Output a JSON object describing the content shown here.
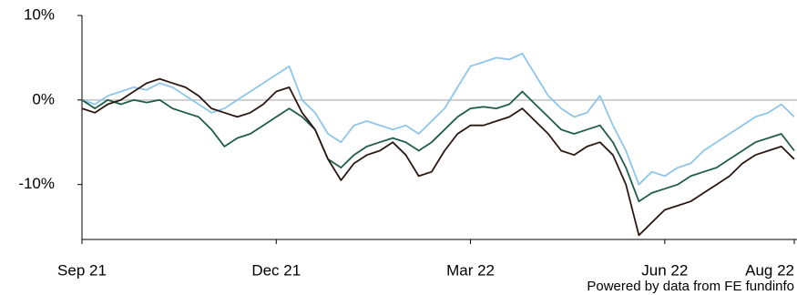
{
  "chart_data": {
    "type": "line",
    "categories": [
      "Sep 21",
      null,
      null,
      null,
      null,
      null,
      null,
      null,
      null,
      null,
      null,
      null,
      null,
      null,
      null,
      "Dec 21",
      null,
      null,
      null,
      null,
      null,
      null,
      null,
      null,
      null,
      null,
      null,
      null,
      null,
      null,
      "Mar 22",
      null,
      null,
      null,
      null,
      null,
      null,
      null,
      null,
      null,
      null,
      null,
      null,
      null,
      null,
      "Jun 22",
      null,
      null,
      null,
      null,
      null,
      null,
      null,
      null,
      null,
      "Aug 22"
    ],
    "series": [
      {
        "color": "#8ec5ea",
        "values": [
          0,
          -0.5,
          0.5,
          1,
          1.5,
          1.2,
          2,
          1.5,
          0.5,
          -0.5,
          -1.5,
          -1,
          0,
          1,
          2,
          3,
          4,
          0,
          -1.5,
          -4,
          -5,
          -3,
          -2.5,
          -3,
          -3.5,
          -3,
          -4,
          -2.5,
          -1,
          1.5,
          4,
          4.5,
          5,
          4.8,
          5.5,
          3,
          0.5,
          -1,
          -2,
          -1.5,
          0.5,
          -3,
          -6,
          -10,
          -8.5,
          -9,
          -8,
          -7.5,
          -6,
          -5,
          -4,
          -3,
          -2,
          -1.5,
          -0.5,
          -2
        ]
      },
      {
        "color": "#1f5c4a",
        "values": [
          0,
          -1,
          0,
          -0.5,
          0,
          -0.3,
          0,
          -1,
          -1.5,
          -2,
          -3.5,
          -5.5,
          -4.5,
          -4,
          -3,
          -2,
          -1,
          -2,
          -3.5,
          -7,
          -8,
          -6.5,
          -5.5,
          -5,
          -4.5,
          -5,
          -6,
          -5,
          -3.5,
          -2,
          -1,
          -0.8,
          -1,
          -0.5,
          1,
          -0.5,
          -2,
          -3.5,
          -4,
          -3.5,
          -3,
          -5,
          -8,
          -12,
          -11,
          -10.5,
          -10,
          -9,
          -8.5,
          -8,
          -7,
          -6,
          -5,
          -4.5,
          -4,
          -6
        ]
      },
      {
        "color": "#2b1712",
        "values": [
          -1,
          -1.5,
          -0.5,
          0,
          1,
          2,
          2.5,
          2,
          1.5,
          0.5,
          -1,
          -1.5,
          -2,
          -1.5,
          -0.5,
          1,
          1.5,
          -1.5,
          -3.5,
          -7,
          -9.5,
          -7.5,
          -6.5,
          -6,
          -5,
          -6.5,
          -9,
          -8.5,
          -6,
          -4,
          -3,
          -3,
          -2.5,
          -2,
          -1,
          -2.5,
          -4,
          -6,
          -6.5,
          -5.5,
          -5,
          -6.5,
          -10,
          -16,
          -14.5,
          -13,
          -12.5,
          -12,
          -11,
          -10,
          -9,
          -7.5,
          -6.5,
          -6,
          -5.5,
          -7
        ]
      }
    ],
    "ylim": [
      -16.5,
      10
    ],
    "yticks": [
      {
        "value": -10,
        "label": "-10%"
      },
      {
        "value": 0,
        "label": "0%"
      },
      {
        "value": 10,
        "label": "10%"
      }
    ],
    "zero_line": true,
    "source": "Powered by data from FE fundinfo"
  }
}
